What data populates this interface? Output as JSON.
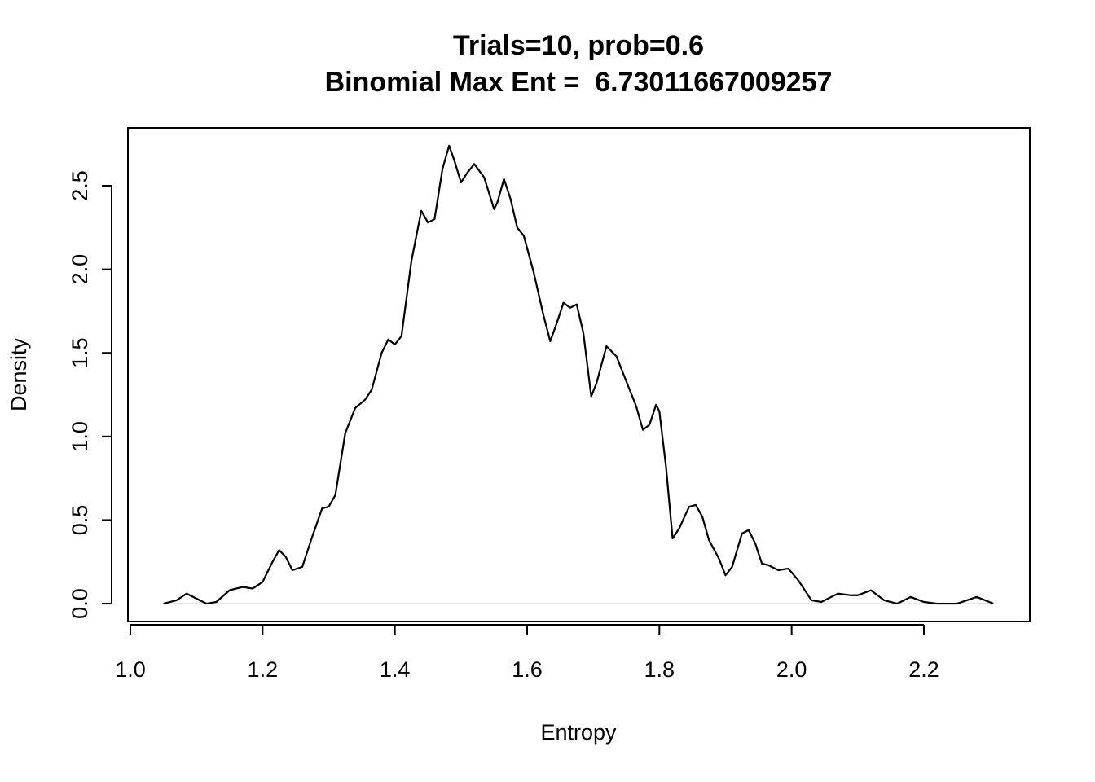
{
  "chart_data": {
    "type": "line",
    "title": "Trials=10, prob=0.6",
    "subtitle": "Binomial Max Ent =  6.73011667009257",
    "x_label": "Entropy",
    "y_label": "Density",
    "x": [
      1.05,
      1.07,
      1.085,
      1.1,
      1.115,
      1.13,
      1.15,
      1.17,
      1.185,
      1.2,
      1.215,
      1.225,
      1.235,
      1.245,
      1.26,
      1.275,
      1.29,
      1.3,
      1.31,
      1.325,
      1.34,
      1.355,
      1.365,
      1.38,
      1.39,
      1.4,
      1.41,
      1.425,
      1.44,
      1.45,
      1.46,
      1.472,
      1.482,
      1.49,
      1.5,
      1.51,
      1.52,
      1.535,
      1.55,
      1.555,
      1.565,
      1.575,
      1.585,
      1.595,
      1.61,
      1.625,
      1.635,
      1.645,
      1.655,
      1.665,
      1.675,
      1.685,
      1.697,
      1.705,
      1.72,
      1.735,
      1.75,
      1.765,
      1.775,
      1.785,
      1.795,
      1.8,
      1.81,
      1.82,
      1.83,
      1.845,
      1.855,
      1.865,
      1.875,
      1.89,
      1.9,
      1.91,
      1.925,
      1.935,
      1.945,
      1.955,
      1.965,
      1.98,
      1.995,
      2.01,
      2.03,
      2.045,
      2.06,
      2.07,
      2.09,
      2.1,
      2.12,
      2.14,
      2.16,
      2.18,
      2.2,
      2.22,
      2.25,
      2.28,
      2.305
    ],
    "series": [
      {
        "color": "#000000",
        "values": [
          0,
          0.02,
          0.06,
          0.03,
          0,
          0.01,
          0.08,
          0.1,
          0.09,
          0.13,
          0.25,
          0.32,
          0.28,
          0.2,
          0.22,
          0.4,
          0.57,
          0.58,
          0.65,
          1.02,
          1.17,
          1.22,
          1.28,
          1.5,
          1.58,
          1.55,
          1.6,
          2.05,
          2.35,
          2.28,
          2.3,
          2.6,
          2.74,
          2.65,
          2.52,
          2.58,
          2.63,
          2.55,
          2.36,
          2.4,
          2.54,
          2.42,
          2.25,
          2.2,
          1.98,
          1.72,
          1.57,
          1.68,
          1.8,
          1.77,
          1.79,
          1.62,
          1.24,
          1.32,
          1.54,
          1.48,
          1.33,
          1.18,
          1.04,
          1.07,
          1.19,
          1.15,
          0.82,
          0.39,
          0.45,
          0.58,
          0.59,
          0.52,
          0.38,
          0.27,
          0.17,
          0.22,
          0.42,
          0.44,
          0.36,
          0.24,
          0.23,
          0.2,
          0.21,
          0.14,
          0.02,
          0.01,
          0.04,
          0.06,
          0.05,
          0.05,
          0.08,
          0.02,
          0,
          0.04,
          0.01,
          0,
          0,
          0.04,
          0
        ]
      }
    ],
    "xlim": [
      0.9963,
      2.3602
    ],
    "ylim": [
      -0.107,
      2.846
    ],
    "xticks": [
      {
        "value": 1,
        "label": "1.0"
      },
      1.2,
      1.4,
      1.6,
      1.8,
      {
        "value": 2,
        "label": "2.0"
      },
      2.2
    ],
    "yticks": [
      {
        "value": 0,
        "label": "0.0"
      },
      0.5,
      {
        "value": 1,
        "label": "1.0"
      },
      1.5,
      {
        "value": 2,
        "label": "2.0"
      },
      2.5
    ]
  }
}
